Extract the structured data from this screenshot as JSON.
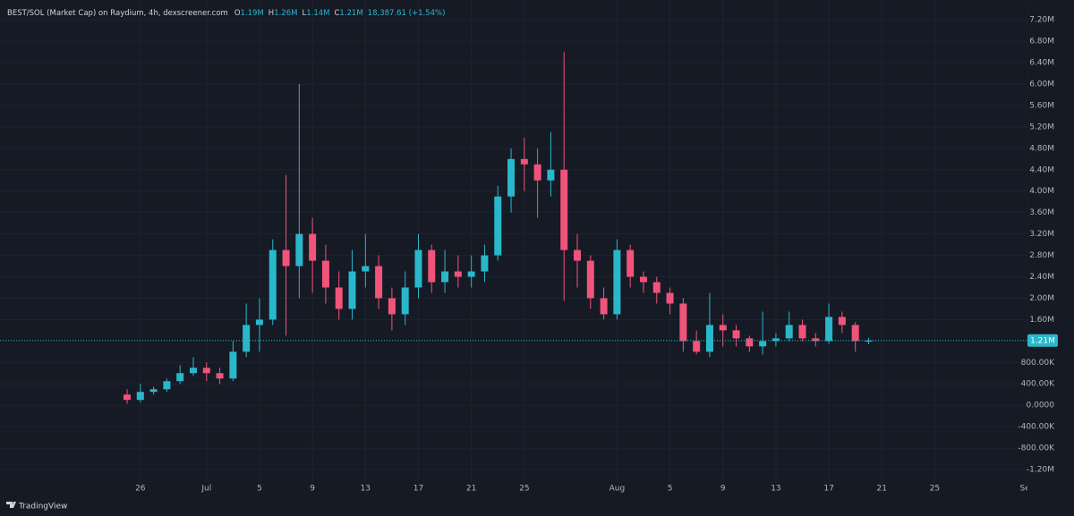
{
  "chart_data": {
    "type": "candlestick",
    "title": "BEST/SOL (Market Cap) on Raydium, 4h, dexscreener.com",
    "ohlc_legend": [
      {
        "key": "O",
        "value": "1.19M"
      },
      {
        "key": "H",
        "value": "1.26M"
      },
      {
        "key": "L",
        "value": "1.14M"
      },
      {
        "key": "C",
        "value": "1.21M"
      }
    ],
    "change": "18,387.61 (+1.54%)",
    "up_color": "#2ab7ca",
    "down_color": "#f0547a",
    "grid": true,
    "x": [
      -1,
      0,
      1,
      2,
      3,
      4,
      5,
      6,
      7,
      8,
      9,
      10,
      11,
      12,
      13,
      14,
      15,
      16,
      17,
      18,
      19,
      20,
      21,
      22,
      23,
      24,
      25,
      26,
      27,
      28,
      29,
      30,
      31,
      32,
      33,
      34,
      35,
      36,
      37,
      38,
      39,
      40,
      41,
      42,
      43,
      44,
      45,
      46,
      47,
      48,
      49,
      50,
      51,
      52,
      53,
      54,
      55
    ],
    "open": [
      200000,
      100000,
      250000,
      300000,
      450000,
      600000,
      700000,
      600000,
      500000,
      1000000,
      1500000,
      1600000,
      2900000,
      2600000,
      3200000,
      2700000,
      2200000,
      1800000,
      2500000,
      2600000,
      2000000,
      1700000,
      2200000,
      2900000,
      2300000,
      2500000,
      2400000,
      2500000,
      2800000,
      3900000,
      4600000,
      4500000,
      4200000,
      4400000,
      2900000,
      2700000,
      2000000,
      1700000,
      2900000,
      2400000,
      2300000,
      2100000,
      1900000,
      1200000,
      1000000,
      1500000,
      1400000,
      1250000,
      1100000,
      1200000,
      1250000,
      1500000,
      1250000,
      1200000,
      1650000,
      1500000,
      1190000
    ],
    "high": [
      300000,
      400000,
      350000,
      500000,
      750000,
      900000,
      800000,
      700000,
      1200000,
      1900000,
      2000000,
      3100000,
      4300000,
      6000000,
      3500000,
      3000000,
      2500000,
      2900000,
      3200000,
      2800000,
      2200000,
      2500000,
      3200000,
      3000000,
      2900000,
      2800000,
      2800000,
      3000000,
      4100000,
      4800000,
      5000000,
      4800000,
      5100000,
      6600000,
      3200000,
      2800000,
      2200000,
      3100000,
      3000000,
      2500000,
      2400000,
      2200000,
      2000000,
      1400000,
      2100000,
      1700000,
      1500000,
      1300000,
      1750000,
      1350000,
      1750000,
      1600000,
      1350000,
      1900000,
      1750000,
      1550000,
      1260000
    ],
    "low": [
      30000,
      50000,
      200000,
      250000,
      400000,
      550000,
      450000,
      400000,
      450000,
      900000,
      1000000,
      1500000,
      1300000,
      2000000,
      2100000,
      1900000,
      1600000,
      1600000,
      2200000,
      1800000,
      1400000,
      1500000,
      2000000,
      2100000,
      2100000,
      2200000,
      2200000,
      2300000,
      2700000,
      3600000,
      4000000,
      3500000,
      3900000,
      1950000,
      2200000,
      1800000,
      1600000,
      1600000,
      2200000,
      2100000,
      1900000,
      1700000,
      1000000,
      950000,
      900000,
      1100000,
      1100000,
      1000000,
      950000,
      1100000,
      1200000,
      1200000,
      1100000,
      1150000,
      1350000,
      1000000,
      1140000
    ],
    "close": [
      100000,
      250000,
      300000,
      450000,
      600000,
      700000,
      600000,
      500000,
      1000000,
      1500000,
      1600000,
      2900000,
      2600000,
      3200000,
      2700000,
      2200000,
      1800000,
      2500000,
      2600000,
      2000000,
      1700000,
      2200000,
      2900000,
      2300000,
      2500000,
      2400000,
      2500000,
      2800000,
      3900000,
      4600000,
      4500000,
      4200000,
      4400000,
      2900000,
      2700000,
      2000000,
      1700000,
      2900000,
      2400000,
      2300000,
      2100000,
      1900000,
      1200000,
      1000000,
      1500000,
      1400000,
      1250000,
      1100000,
      1200000,
      1250000,
      1500000,
      1250000,
      1200000,
      1650000,
      1500000,
      1200000,
      1210000
    ],
    "xlim": [
      -10.6,
      67
    ],
    "ylim": [
      -1450000,
      7570000
    ],
    "xticks": [
      {
        "value": 0,
        "label": "26"
      },
      {
        "value": 5,
        "label": "Jul"
      },
      {
        "value": 9,
        "label": "5"
      },
      {
        "value": 13,
        "label": "9"
      },
      {
        "value": 17,
        "label": "13"
      },
      {
        "value": 21,
        "label": "17"
      },
      {
        "value": 25,
        "label": "21"
      },
      {
        "value": 29,
        "label": "25"
      },
      {
        "value": 36,
        "label": "Aug"
      },
      {
        "value": 40,
        "label": "5"
      },
      {
        "value": 44,
        "label": "9"
      },
      {
        "value": 48,
        "label": "13"
      },
      {
        "value": 52,
        "label": "17"
      },
      {
        "value": 56,
        "label": "21"
      },
      {
        "value": 60,
        "label": "25"
      },
      {
        "value": 67,
        "label": "Sep"
      }
    ],
    "yticks": [
      {
        "value": 7200000,
        "label": "7.20M"
      },
      {
        "value": 6800000,
        "label": "6.80M"
      },
      {
        "value": 6400000,
        "label": "6.40M"
      },
      {
        "value": 6000000,
        "label": "6.00M"
      },
      {
        "value": 5600000,
        "label": "5.60M"
      },
      {
        "value": 5200000,
        "label": "5.20M"
      },
      {
        "value": 4800000,
        "label": "4.80M"
      },
      {
        "value": 4400000,
        "label": "4.40M"
      },
      {
        "value": 4000000,
        "label": "4.00M"
      },
      {
        "value": 3600000,
        "label": "3.60M"
      },
      {
        "value": 3200000,
        "label": "3.20M"
      },
      {
        "value": 2800000,
        "label": "2.80M"
      },
      {
        "value": 2400000,
        "label": "2.40M"
      },
      {
        "value": 2000000,
        "label": "2.00M"
      },
      {
        "value": 1600000,
        "label": "1.60M"
      },
      {
        "value": 1200000,
        "label": "1.20M"
      },
      {
        "value": 800000,
        "label": "800.00K"
      },
      {
        "value": 400000,
        "label": "400.00K"
      },
      {
        "value": 0,
        "label": "0.0000"
      },
      {
        "value": -400000,
        "label": "-400.00K"
      },
      {
        "value": -800000,
        "label": "-800.00K"
      },
      {
        "value": -1200000,
        "label": "-1.20M"
      }
    ],
    "last_price": {
      "value": 1210000,
      "label": "1.21M"
    }
  },
  "branding": "TradingView"
}
